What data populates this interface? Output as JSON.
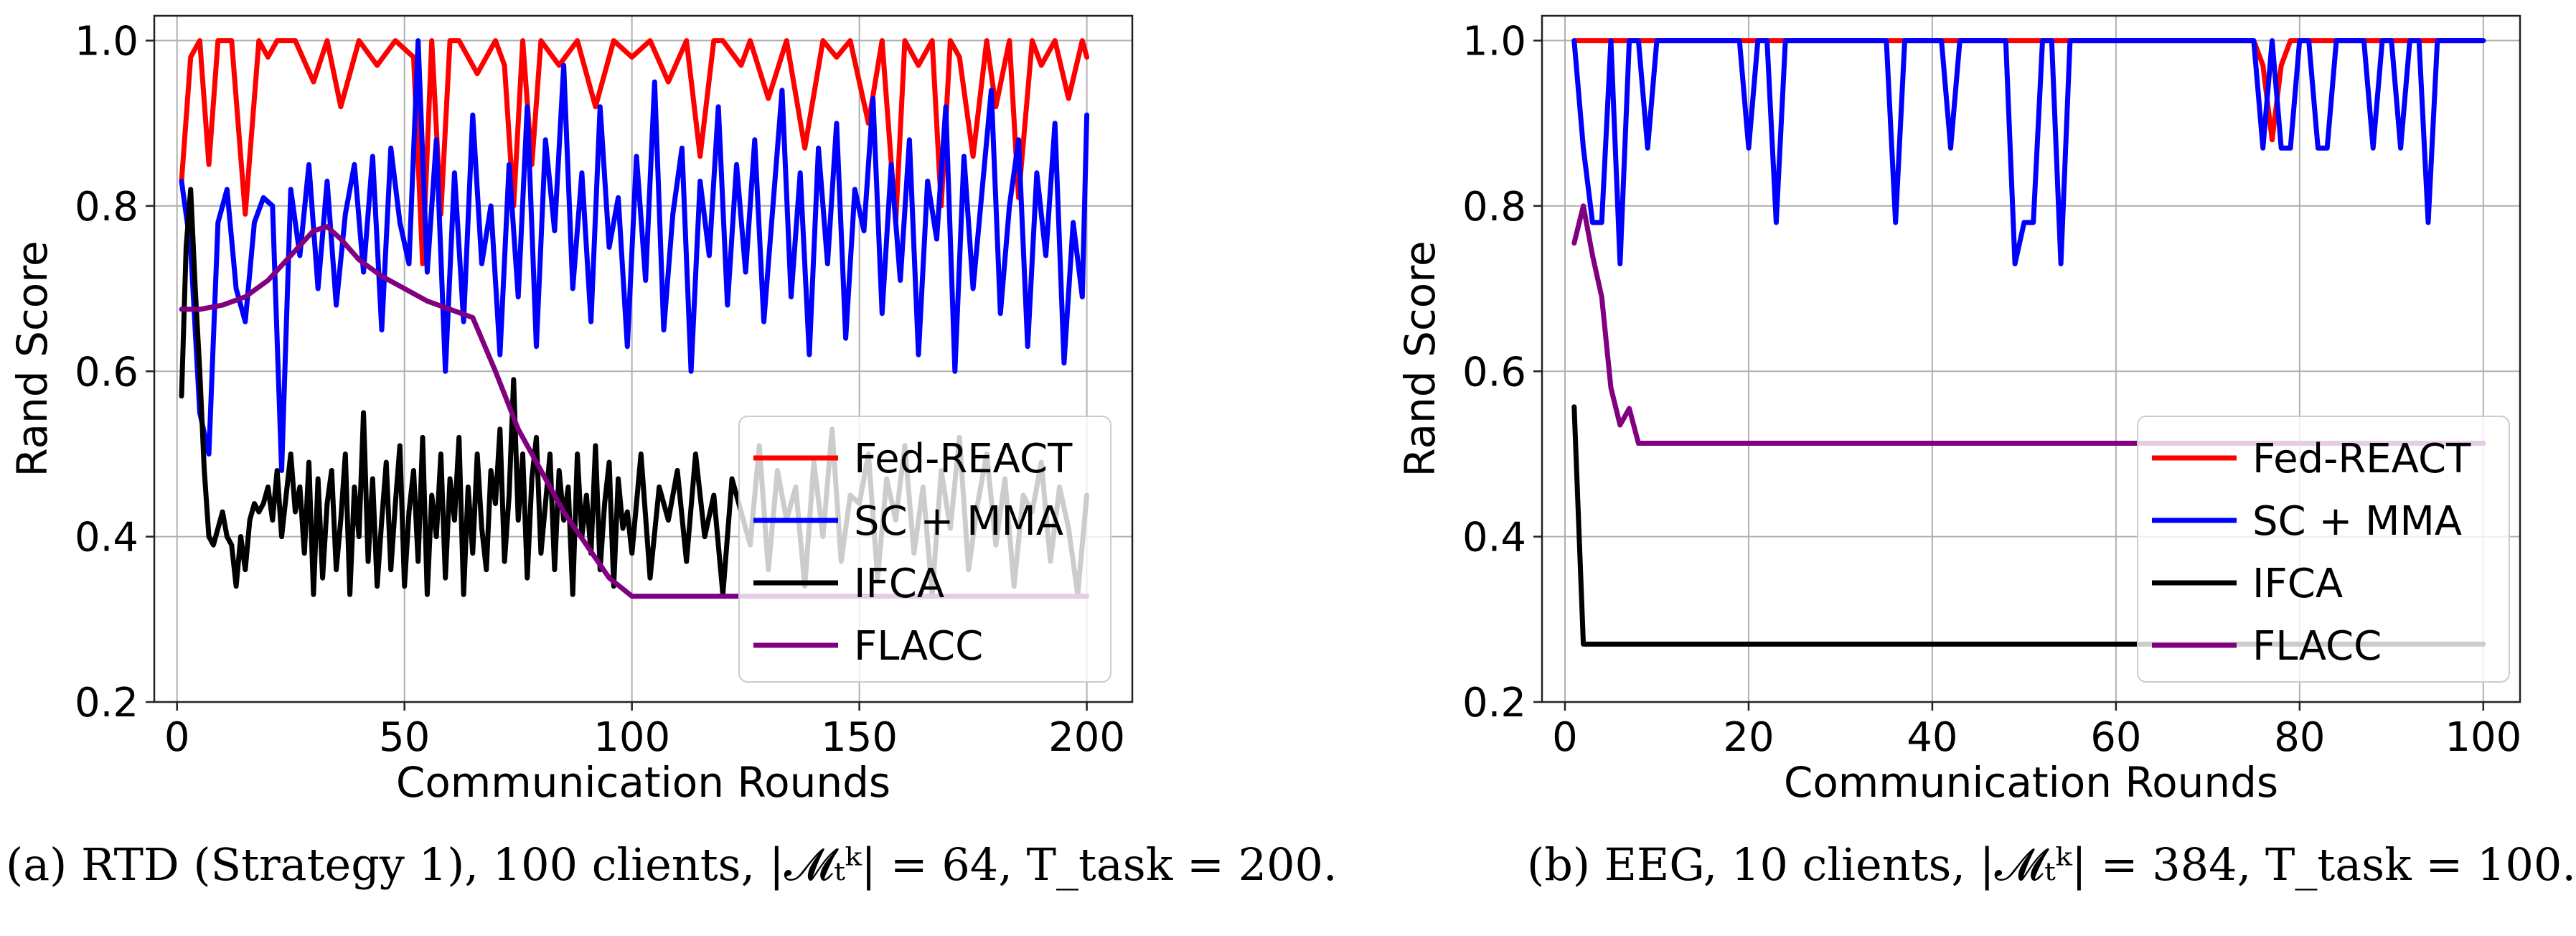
{
  "chart_data": [
    {
      "type": "line",
      "xlabel": "Communication Rounds",
      "ylabel": "Rand Score",
      "xlim": [
        -5,
        210
      ],
      "ylim": [
        0.2,
        1.03
      ],
      "xticks": [
        0,
        50,
        100,
        150,
        200
      ],
      "yticks": [
        0.2,
        0.4,
        0.6,
        0.8,
        1.0
      ],
      "xtick_labels": [
        "0",
        "50",
        "100",
        "150",
        "200"
      ],
      "ytick_labels": [
        "0.2",
        "0.4",
        "0.6",
        "0.8",
        "1.0"
      ],
      "grid": true,
      "legend_position": "lower-right",
      "caption": "(a) RTD (Strategy 1), 100 clients, |𝓜ₜᵏ| = 64, T_task = 200.",
      "series": [
        {
          "name": "Fed-REACT",
          "color": "#ff0000",
          "x": [
            1,
            3,
            5,
            7,
            9,
            12,
            15,
            18,
            20,
            22,
            24,
            26,
            30,
            33,
            36,
            40,
            44,
            48,
            52,
            54,
            56,
            58,
            60,
            62,
            66,
            70,
            72,
            74,
            76,
            78,
            80,
            84,
            88,
            92,
            96,
            100,
            104,
            108,
            112,
            115,
            118,
            120,
            124,
            126,
            130,
            134,
            138,
            142,
            145,
            148,
            152,
            155,
            158,
            160,
            163,
            166,
            168,
            170,
            172,
            175,
            178,
            180,
            183,
            185,
            188,
            190,
            193,
            196,
            199,
            200
          ],
          "y": [
            0.83,
            0.98,
            1.0,
            0.85,
            1.0,
            1.0,
            0.79,
            1.0,
            0.98,
            1.0,
            1.0,
            1.0,
            0.95,
            1.0,
            0.92,
            1.0,
            0.97,
            1.0,
            0.98,
            0.73,
            1.0,
            0.79,
            1.0,
            1.0,
            0.96,
            1.0,
            0.97,
            0.8,
            1.0,
            0.85,
            1.0,
            0.97,
            1.0,
            0.92,
            1.0,
            0.98,
            1.0,
            0.95,
            1.0,
            0.86,
            1.0,
            1.0,
            0.97,
            1.0,
            0.93,
            1.0,
            0.87,
            1.0,
            0.98,
            1.0,
            0.9,
            1.0,
            0.78,
            1.0,
            0.97,
            1.0,
            0.8,
            1.0,
            0.98,
            0.86,
            1.0,
            0.92,
            1.0,
            0.81,
            1.0,
            0.97,
            1.0,
            0.93,
            1.0,
            0.98
          ]
        },
        {
          "name": "SC + MMA",
          "color": "#0000ff",
          "x": [
            1,
            3,
            5,
            7,
            9,
            11,
            13,
            15,
            17,
            19,
            21,
            23,
            25,
            27,
            29,
            31,
            33,
            35,
            37,
            39,
            41,
            43,
            45,
            47,
            49,
            51,
            53,
            55,
            57,
            59,
            61,
            63,
            65,
            67,
            69,
            71,
            73,
            75,
            77,
            79,
            81,
            83,
            85,
            87,
            89,
            91,
            93,
            95,
            97,
            99,
            101,
            103,
            105,
            107,
            109,
            111,
            113,
            115,
            117,
            119,
            121,
            123,
            125,
            127,
            129,
            131,
            133,
            135,
            137,
            139,
            141,
            143,
            145,
            147,
            149,
            151,
            153,
            155,
            157,
            159,
            161,
            163,
            165,
            167,
            169,
            171,
            173,
            175,
            177,
            179,
            181,
            183,
            185,
            187,
            189,
            191,
            193,
            195,
            197,
            199,
            200
          ],
          "y": [
            0.83,
            0.75,
            0.55,
            0.5,
            0.78,
            0.82,
            0.7,
            0.66,
            0.78,
            0.81,
            0.8,
            0.48,
            0.82,
            0.74,
            0.85,
            0.7,
            0.83,
            0.68,
            0.79,
            0.85,
            0.72,
            0.86,
            0.65,
            0.87,
            0.78,
            0.73,
            1.0,
            0.72,
            0.88,
            0.6,
            0.84,
            0.66,
            0.91,
            0.73,
            0.8,
            0.62,
            0.85,
            0.69,
            0.92,
            0.63,
            0.88,
            0.77,
            0.97,
            0.7,
            0.84,
            0.66,
            0.92,
            0.75,
            0.81,
            0.63,
            0.86,
            0.71,
            0.95,
            0.65,
            0.79,
            0.87,
            0.6,
            0.83,
            0.74,
            0.92,
            0.68,
            0.85,
            0.72,
            0.88,
            0.66,
            0.8,
            0.94,
            0.69,
            0.84,
            0.62,
            0.87,
            0.73,
            0.9,
            0.64,
            0.82,
            0.77,
            0.93,
            0.67,
            0.85,
            0.71,
            0.88,
            0.62,
            0.83,
            0.76,
            0.92,
            0.6,
            0.86,
            0.7,
            0.82,
            0.94,
            0.67,
            0.8,
            0.88,
            0.63,
            0.84,
            0.74,
            0.9,
            0.61,
            0.78,
            0.69,
            0.91
          ]
        },
        {
          "name": "IFCA",
          "color": "#000000",
          "x": [
            1,
            2,
            3,
            4,
            5,
            6,
            7,
            8,
            9,
            10,
            11,
            12,
            13,
            14,
            15,
            16,
            17,
            18,
            19,
            20,
            21,
            22,
            23,
            24,
            25,
            26,
            27,
            28,
            29,
            30,
            31,
            32,
            33,
            34,
            35,
            36,
            37,
            38,
            39,
            40,
            41,
            42,
            43,
            44,
            45,
            46,
            47,
            48,
            49,
            50,
            51,
            52,
            53,
            54,
            55,
            56,
            57,
            58,
            59,
            60,
            61,
            62,
            63,
            64,
            65,
            66,
            67,
            68,
            69,
            70,
            71,
            72,
            73,
            74,
            75,
            76,
            77,
            78,
            79,
            80,
            81,
            82,
            83,
            84,
            85,
            86,
            87,
            88,
            89,
            90,
            91,
            92,
            93,
            94,
            95,
            96,
            97,
            98,
            99,
            100,
            102,
            104,
            106,
            108,
            110,
            112,
            114,
            116,
            118,
            120,
            122,
            124,
            126,
            128,
            130,
            132,
            134,
            136,
            138,
            140,
            142,
            144,
            146,
            148,
            150,
            152,
            154,
            156,
            158,
            160,
            162,
            164,
            166,
            168,
            170,
            172,
            174,
            176,
            178,
            180,
            182,
            184,
            186,
            188,
            190,
            192,
            194,
            196,
            198,
            200
          ],
          "y": [
            0.57,
            0.75,
            0.82,
            0.7,
            0.6,
            0.48,
            0.4,
            0.39,
            0.41,
            0.43,
            0.4,
            0.39,
            0.34,
            0.4,
            0.36,
            0.42,
            0.44,
            0.43,
            0.44,
            0.46,
            0.42,
            0.48,
            0.4,
            0.45,
            0.5,
            0.43,
            0.46,
            0.38,
            0.49,
            0.33,
            0.47,
            0.35,
            0.44,
            0.48,
            0.36,
            0.42,
            0.5,
            0.33,
            0.46,
            0.4,
            0.55,
            0.37,
            0.47,
            0.34,
            0.42,
            0.49,
            0.36,
            0.44,
            0.51,
            0.34,
            0.43,
            0.48,
            0.37,
            0.52,
            0.33,
            0.45,
            0.4,
            0.5,
            0.35,
            0.47,
            0.42,
            0.52,
            0.33,
            0.46,
            0.38,
            0.5,
            0.41,
            0.36,
            0.48,
            0.44,
            0.53,
            0.37,
            0.45,
            0.59,
            0.42,
            0.5,
            0.35,
            0.47,
            0.52,
            0.38,
            0.44,
            0.5,
            0.36,
            0.48,
            0.42,
            0.46,
            0.33,
            0.5,
            0.4,
            0.45,
            0.38,
            0.51,
            0.36,
            0.44,
            0.49,
            0.34,
            0.47,
            0.41,
            0.43,
            0.38,
            0.5,
            0.35,
            0.46,
            0.42,
            0.48,
            0.37,
            0.5,
            0.4,
            0.45,
            0.33,
            0.47,
            0.43,
            0.39,
            0.51,
            0.36,
            0.48,
            0.42,
            0.46,
            0.34,
            0.49,
            0.4,
            0.53,
            0.37,
            0.45,
            0.44,
            0.5,
            0.35,
            0.47,
            0.42,
            0.51,
            0.38,
            0.46,
            0.33,
            0.48,
            0.41,
            0.52,
            0.36,
            0.44,
            0.5,
            0.39,
            0.47,
            0.34,
            0.45,
            0.43,
            0.49,
            0.37,
            0.46,
            0.41,
            0.33,
            0.45
          ]
        },
        {
          "name": "FLACC",
          "color": "#800080",
          "x": [
            1,
            5,
            10,
            15,
            20,
            25,
            30,
            33,
            36,
            40,
            45,
            50,
            55,
            60,
            65,
            70,
            75,
            80,
            85,
            90,
            95,
            100,
            110,
            120,
            130,
            140,
            150,
            160,
            170,
            180,
            190,
            200
          ],
          "y": [
            0.675,
            0.675,
            0.68,
            0.69,
            0.71,
            0.74,
            0.77,
            0.775,
            0.76,
            0.735,
            0.715,
            0.7,
            0.685,
            0.675,
            0.665,
            0.6,
            0.53,
            0.48,
            0.43,
            0.39,
            0.35,
            0.328,
            0.328,
            0.328,
            0.328,
            0.328,
            0.328,
            0.328,
            0.328,
            0.328,
            0.328,
            0.328
          ]
        }
      ]
    },
    {
      "type": "line",
      "xlabel": "Communication Rounds",
      "ylabel": "Rand Score",
      "xlim": [
        -2.5,
        104
      ],
      "ylim": [
        0.2,
        1.03
      ],
      "xticks": [
        0,
        20,
        40,
        60,
        80,
        100
      ],
      "yticks": [
        0.2,
        0.4,
        0.6,
        0.8,
        1.0
      ],
      "xtick_labels": [
        "0",
        "20",
        "40",
        "60",
        "80",
        "100"
      ],
      "ytick_labels": [
        "0.2",
        "0.4",
        "0.6",
        "0.8",
        "1.0"
      ],
      "grid": true,
      "legend_position": "lower-right",
      "caption": "(b) EEG, 10 clients, |𝓜ₜᵏ| = 384, T_task = 100.",
      "series": [
        {
          "name": "Fed-REACT",
          "color": "#ff0000",
          "x": [
            1,
            10,
            20,
            30,
            40,
            50,
            60,
            70,
            75,
            76,
            77,
            78,
            79,
            80,
            90,
            100
          ],
          "y": [
            1.0,
            1.0,
            1.0,
            1.0,
            1.0,
            1.0,
            1.0,
            1.0,
            1.0,
            0.97,
            0.88,
            0.97,
            1.0,
            1.0,
            1.0,
            1.0
          ]
        },
        {
          "name": "SC + MMA",
          "color": "#0000ff",
          "x": [
            1,
            2,
            3,
            4,
            5,
            6,
            7,
            8,
            9,
            10,
            11,
            12,
            13,
            14,
            15,
            16,
            17,
            18,
            19,
            20,
            21,
            22,
            23,
            24,
            25,
            26,
            27,
            28,
            29,
            30,
            31,
            32,
            33,
            34,
            35,
            36,
            37,
            38,
            39,
            40,
            41,
            42,
            43,
            44,
            45,
            46,
            47,
            48,
            49,
            50,
            51,
            52,
            53,
            54,
            55,
            56,
            57,
            58,
            59,
            60,
            61,
            62,
            63,
            64,
            65,
            66,
            67,
            68,
            69,
            70,
            71,
            72,
            73,
            74,
            75,
            76,
            77,
            78,
            79,
            80,
            81,
            82,
            83,
            84,
            85,
            86,
            87,
            88,
            89,
            90,
            91,
            92,
            93,
            94,
            95,
            96,
            97,
            98,
            99,
            100
          ],
          "y": [
            1.0,
            0.87,
            0.78,
            0.78,
            1.0,
            0.73,
            1.0,
            1.0,
            0.87,
            1.0,
            1.0,
            1.0,
            1.0,
            1.0,
            1.0,
            1.0,
            1.0,
            1.0,
            1.0,
            0.87,
            1.0,
            1.0,
            0.78,
            1.0,
            1.0,
            1.0,
            1.0,
            1.0,
            1.0,
            1.0,
            1.0,
            1.0,
            1.0,
            1.0,
            1.0,
            0.78,
            1.0,
            1.0,
            1.0,
            1.0,
            1.0,
            0.87,
            1.0,
            1.0,
            1.0,
            1.0,
            1.0,
            1.0,
            0.73,
            0.78,
            0.78,
            1.0,
            1.0,
            0.73,
            1.0,
            1.0,
            1.0,
            1.0,
            1.0,
            1.0,
            1.0,
            1.0,
            1.0,
            1.0,
            1.0,
            1.0,
            1.0,
            1.0,
            1.0,
            1.0,
            1.0,
            1.0,
            1.0,
            1.0,
            1.0,
            0.87,
            1.0,
            0.87,
            0.87,
            1.0,
            1.0,
            0.87,
            0.87,
            1.0,
            1.0,
            1.0,
            1.0,
            0.87,
            1.0,
            1.0,
            0.87,
            1.0,
            1.0,
            0.78,
            1.0,
            1.0,
            1.0,
            1.0,
            1.0,
            1.0
          ]
        },
        {
          "name": "IFCA",
          "color": "#000000",
          "x": [
            1,
            2,
            3,
            10,
            20,
            30,
            40,
            50,
            60,
            70,
            80,
            90,
            100
          ],
          "y": [
            0.557,
            0.27,
            0.27,
            0.27,
            0.27,
            0.27,
            0.27,
            0.27,
            0.27,
            0.27,
            0.27,
            0.27,
            0.27
          ]
        },
        {
          "name": "FLACC",
          "color": "#800080",
          "x": [
            1,
            2,
            3,
            4,
            5,
            6,
            7,
            8,
            10,
            20,
            40,
            60,
            80,
            100
          ],
          "y": [
            0.755,
            0.8,
            0.74,
            0.69,
            0.58,
            0.535,
            0.555,
            0.513,
            0.513,
            0.513,
            0.513,
            0.513,
            0.513,
            0.513
          ]
        }
      ]
    }
  ]
}
